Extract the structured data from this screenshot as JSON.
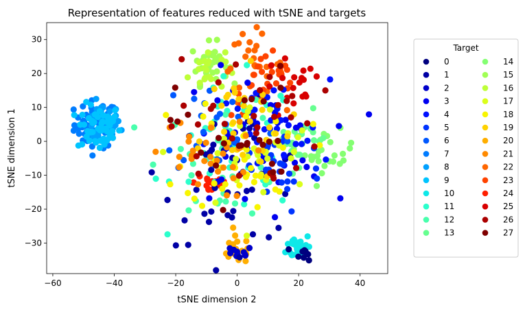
{
  "chart_data": {
    "type": "scatter",
    "title": "Representation of features reduced with tSNE and targets",
    "xlabel": "tSNE dimension 2",
    "ylabel": "tSNE dimension 1",
    "xlim": [
      -62,
      49
    ],
    "ylim": [
      -39,
      35
    ],
    "xticks": [
      -60,
      -40,
      -20,
      0,
      20,
      40
    ],
    "yticks": [
      -30,
      -20,
      -10,
      0,
      10,
      20,
      30
    ],
    "xtick_labels": [
      "−60",
      "−40",
      "−20",
      "0",
      "20",
      "40"
    ],
    "ytick_labels": [
      "−30",
      "−20",
      "−10",
      "0",
      "10",
      "20",
      "30"
    ],
    "grid": false,
    "legend": {
      "title": "Target",
      "placement": "outside-right",
      "columns": 2,
      "entries": [
        {
          "label": "0",
          "color": "#00007f"
        },
        {
          "label": "1",
          "color": "#0000a5"
        },
        {
          "label": "2",
          "color": "#0000ca"
        },
        {
          "label": "3",
          "color": "#0000f0"
        },
        {
          "label": "4",
          "color": "#0010ff"
        },
        {
          "label": "5",
          "color": "#0034ff"
        },
        {
          "label": "6",
          "color": "#0058ff"
        },
        {
          "label": "7",
          "color": "#007cff"
        },
        {
          "label": "8",
          "color": "#00a0ff"
        },
        {
          "label": "9",
          "color": "#00c4ff"
        },
        {
          "label": "10",
          "color": "#0ee8e8"
        },
        {
          "label": "11",
          "color": "#2bffcc"
        },
        {
          "label": "12",
          "color": "#49ffad"
        },
        {
          "label": "13",
          "color": "#66ff90"
        },
        {
          "label": "14",
          "color": "#84ff72"
        },
        {
          "label": "15",
          "color": "#a1ff55"
        },
        {
          "label": "16",
          "color": "#beff38"
        },
        {
          "label": "17",
          "color": "#dbff1b"
        },
        {
          "label": "18",
          "color": "#f8f500"
        },
        {
          "label": "19",
          "color": "#ffd200"
        },
        {
          "label": "20",
          "color": "#ffae00"
        },
        {
          "label": "21",
          "color": "#ff8a00"
        },
        {
          "label": "22",
          "color": "#ff6600"
        },
        {
          "label": "23",
          "color": "#ff4300"
        },
        {
          "label": "24",
          "color": "#ff1f00"
        },
        {
          "label": "25",
          "color": "#d80000"
        },
        {
          "label": "26",
          "color": "#ab0000"
        },
        {
          "label": "27",
          "color": "#7f0000"
        }
      ]
    },
    "clusters": [
      {
        "target": "7",
        "center": [
          -46,
          5
        ],
        "spread": [
          3.5,
          3.5
        ],
        "count": 55
      },
      {
        "target": "8",
        "center": [
          -44,
          5
        ],
        "spread": [
          3,
          3
        ],
        "count": 35
      },
      {
        "target": "9",
        "center": [
          -45,
          4
        ],
        "spread": [
          3.5,
          3.5
        ],
        "count": 55
      },
      {
        "target": "10",
        "center": [
          20,
          -31
        ],
        "spread": [
          2,
          2
        ],
        "count": 28
      },
      {
        "target": "0",
        "center": [
          22,
          -33
        ],
        "spread": [
          1.5,
          1
        ],
        "count": 10
      },
      {
        "target": "15",
        "center": [
          -9,
          23
        ],
        "spread": [
          3,
          3
        ],
        "count": 35
      },
      {
        "target": "16",
        "center": [
          -10,
          21
        ],
        "spread": [
          3,
          3
        ],
        "count": 20
      },
      {
        "target": "14",
        "center": [
          30,
          -3
        ],
        "spread": [
          4,
          3
        ],
        "count": 25
      },
      {
        "target": "13",
        "center": [
          20,
          1
        ],
        "spread": [
          5,
          4
        ],
        "count": 25
      },
      {
        "target": "22",
        "center": [
          5,
          22
        ],
        "spread": [
          5,
          5
        ],
        "count": 30
      },
      {
        "target": "23",
        "center": [
          10,
          17
        ],
        "spread": [
          6,
          5
        ],
        "count": 25
      },
      {
        "target": "24",
        "center": [
          -8,
          -12
        ],
        "spread": [
          3,
          2
        ],
        "count": 20
      },
      {
        "target": "20",
        "center": [
          0,
          -32
        ],
        "spread": [
          3,
          2
        ],
        "count": 20
      },
      {
        "target": "2",
        "center": [
          0,
          -33
        ],
        "spread": [
          2.5,
          1
        ],
        "count": 10
      },
      {
        "target": "25",
        "center": [
          18,
          15
        ],
        "spread": [
          5,
          5
        ],
        "count": 18
      },
      {
        "target": "11",
        "center": [
          0,
          -2
        ],
        "spread": [
          10,
          10
        ],
        "count": 45
      },
      {
        "target": "12",
        "center": [
          -5,
          -5
        ],
        "spread": [
          10,
          9
        ],
        "count": 30
      },
      {
        "target": "1",
        "center": [
          0,
          -10
        ],
        "spread": [
          12,
          10
        ],
        "count": 45
      },
      {
        "target": "3",
        "center": [
          5,
          0
        ],
        "spread": [
          12,
          10
        ],
        "count": 40
      },
      {
        "target": "4",
        "center": [
          10,
          2
        ],
        "spread": [
          10,
          8
        ],
        "count": 30
      },
      {
        "target": "5",
        "center": [
          12,
          -8
        ],
        "spread": [
          8,
          7
        ],
        "count": 30
      },
      {
        "target": "6",
        "center": [
          -5,
          5
        ],
        "spread": [
          10,
          8
        ],
        "count": 25
      },
      {
        "target": "17",
        "center": [
          5,
          -5
        ],
        "spread": [
          10,
          8
        ],
        "count": 35
      },
      {
        "target": "18",
        "center": [
          3,
          -2
        ],
        "spread": [
          10,
          9
        ],
        "count": 35
      },
      {
        "target": "19",
        "center": [
          -2,
          5
        ],
        "spread": [
          10,
          8
        ],
        "count": 35
      },
      {
        "target": "21",
        "center": [
          -12,
          -5
        ],
        "spread": [
          8,
          6
        ],
        "count": 30
      },
      {
        "target": "26",
        "center": [
          2,
          5
        ],
        "spread": [
          12,
          10
        ],
        "count": 30
      },
      {
        "target": "27",
        "center": [
          0,
          2
        ],
        "spread": [
          10,
          10
        ],
        "count": 25
      }
    ]
  }
}
